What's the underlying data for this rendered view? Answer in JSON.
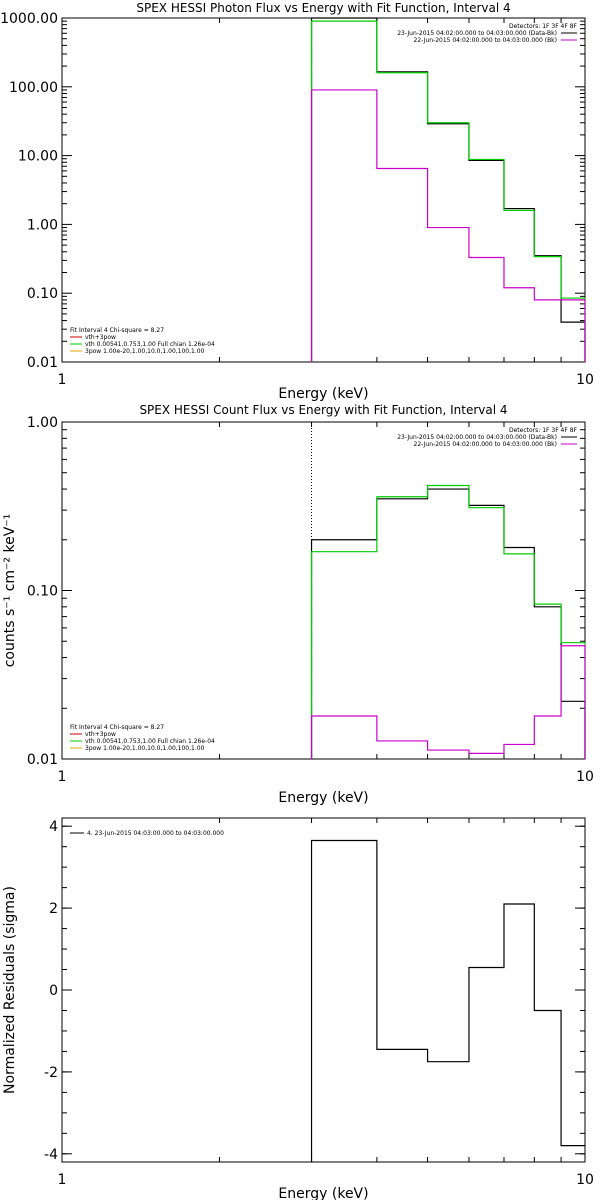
{
  "chart_data": [
    {
      "type": "line",
      "title": "SPEX HESSI Photon Flux vs Energy with Fit Function, Interval 4",
      "xlabel": "Energy (keV)",
      "ylabel": "",
      "xscale": "log",
      "yscale": "log",
      "xlim": [
        1,
        10
      ],
      "ylim": [
        0.01,
        1000
      ],
      "xticks": [
        {
          "v": 1,
          "label": "1"
        },
        {
          "v": 10,
          "label": "10"
        }
      ],
      "yticks": [
        {
          "v": 0.01,
          "label": "0.01"
        },
        {
          "v": 0.1,
          "label": "0.10"
        },
        {
          "v": 1,
          "label": "1.00"
        },
        {
          "v": 10,
          "label": "10.00"
        },
        {
          "v": 100,
          "label": "100.00"
        },
        {
          "v": 1000,
          "label": "1000.00"
        }
      ],
      "vline": 3,
      "bin_edges": [
        3,
        4,
        5,
        6,
        7,
        8,
        9,
        10
      ],
      "series": [
        {
          "key": "data",
          "color": "#000000",
          "values": [
            1000,
            165,
            29,
            8.5,
            1.7,
            0.35,
            0.038
          ]
        },
        {
          "key": "fit",
          "color": "#00cc00",
          "values": [
            900,
            160,
            30,
            8.8,
            1.6,
            0.34,
            0.085
          ]
        },
        {
          "key": "background",
          "color": "#cc00cc",
          "values": [
            90,
            6.5,
            0.9,
            0.33,
            0.12,
            0.08,
            0.08
          ]
        }
      ],
      "legend_right": {
        "header": "Detectors: 1F 3F 4F 8F",
        "entries": [
          {
            "text": "23-Jun-2015 04:02:00.000 to 04:03:00.000 (Data-Bk)",
            "color": "#000000"
          },
          {
            "text": "22-Jun-2015 04:02:00.000 to 04:03:00.000 (Bk)",
            "color": "#cc00cc"
          }
        ]
      },
      "legend_left": {
        "header": "Fit Interval  4    Chi-square = 8.27",
        "entries": [
          {
            "text": "vth+3pow",
            "color": "#cc0000"
          },
          {
            "text": "vth 0.00541,0.753,1.00   Full chian 1.26e-04",
            "color": "#00cc00"
          },
          {
            "text": "3pow 1.00e-20,1.00,10.0,1.00,100,1.00",
            "color": "#ddaa00"
          }
        ]
      }
    },
    {
      "type": "line",
      "title": "SPEX HESSI Count Flux vs Energy with Fit Function, Interval 4",
      "xlabel": "Energy (keV)",
      "ylabel": "counts s⁻¹ cm⁻² keV⁻¹",
      "xscale": "log",
      "yscale": "log",
      "xlim": [
        1,
        10
      ],
      "ylim": [
        0.01,
        1
      ],
      "xticks": [
        {
          "v": 1,
          "label": "1"
        },
        {
          "v": 10,
          "label": "10"
        }
      ],
      "yticks": [
        {
          "v": 0.01,
          "label": "0.01"
        },
        {
          "v": 0.1,
          "label": "0.10"
        },
        {
          "v": 1,
          "label": "1.00"
        }
      ],
      "vline": 3,
      "bin_edges": [
        3,
        4,
        5,
        6,
        7,
        8,
        9,
        10
      ],
      "series": [
        {
          "key": "data",
          "color": "#000000",
          "values": [
            0.2,
            0.35,
            0.4,
            0.32,
            0.18,
            0.08,
            0.022
          ]
        },
        {
          "key": "fit",
          "color": "#00cc00",
          "values": [
            0.17,
            0.36,
            0.42,
            0.31,
            0.165,
            0.083,
            0.049
          ]
        },
        {
          "key": "background",
          "color": "#cc00cc",
          "values": [
            0.018,
            0.0128,
            0.0113,
            0.0108,
            0.0122,
            0.018,
            0.047
          ]
        }
      ],
      "legend_right": {
        "header": "Detectors: 1F 3F 4F 8F",
        "entries": [
          {
            "text": "23-Jun-2015 04:02:00.000 to 04:03:00.000 (Data-Bk)",
            "color": "#000000"
          },
          {
            "text": "22-Jun-2015 04:02:00.000 to 04:03:00.000 (Bk)",
            "color": "#cc00cc"
          }
        ]
      },
      "legend_left": {
        "header": "Fit Interval  4    Chi-square = 8.27",
        "entries": [
          {
            "text": "vth+3pow",
            "color": "#cc0000"
          },
          {
            "text": "vth 0.00541,0.753,1.00   Full chian 1.26e-04",
            "color": "#00cc00"
          },
          {
            "text": "3pow 1.00e-20,1.00,10.0,1.00,100,1.00",
            "color": "#ddaa00"
          }
        ]
      }
    },
    {
      "type": "line",
      "title": "",
      "xlabel": "Energy (keV)",
      "ylabel": "Normalized Residuals (sigma)",
      "xscale": "log",
      "yscale": "linear",
      "xlim": [
        1,
        10
      ],
      "ylim": [
        -4.2,
        4.2
      ],
      "xticks": [
        {
          "v": 1,
          "label": "1"
        },
        {
          "v": 10,
          "label": "10"
        }
      ],
      "yticks": [
        {
          "v": -4,
          "label": "-4"
        },
        {
          "v": -2,
          "label": "-2"
        },
        {
          "v": 0,
          "label": "0"
        },
        {
          "v": 2,
          "label": "2"
        },
        {
          "v": 4,
          "label": "4"
        }
      ],
      "bin_edges": [
        3,
        4,
        5,
        6,
        7,
        8,
        9,
        10
      ],
      "series": [
        {
          "key": "residuals",
          "color": "#000000",
          "values": [
            3.65,
            -1.45,
            -1.75,
            0.55,
            2.1,
            -0.5,
            -3.8
          ]
        }
      ],
      "legend_top": {
        "entries": [
          {
            "text": "4. 23-Jun-2015 04:03:00.000 to 04:03:00.000",
            "color": "#000000"
          }
        ]
      }
    }
  ]
}
